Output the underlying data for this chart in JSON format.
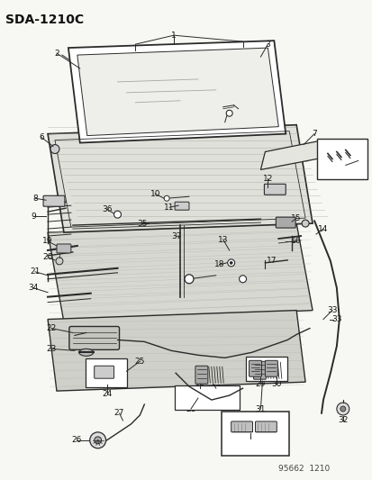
{
  "title": "SDA−1210C",
  "bg_color": "#f7f7f3",
  "lc": "#2a2a2a",
  "fig_width": 4.14,
  "fig_height": 5.33,
  "dpi": 100,
  "footer": "95662  1210"
}
